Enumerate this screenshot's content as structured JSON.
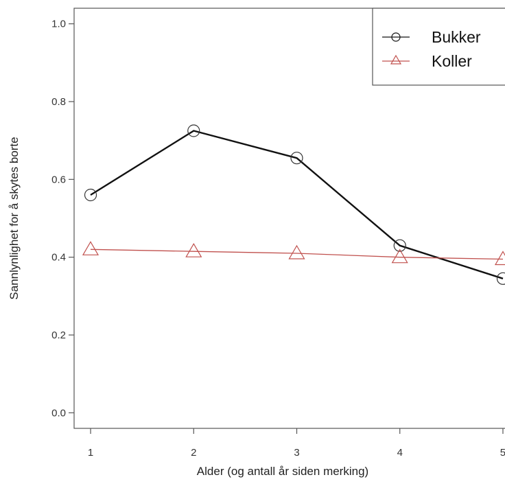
{
  "chart_data": {
    "type": "line",
    "xlabel": "Alder (og antall år siden merking)",
    "ylabel": "Sannlynlighet for å skytes borte",
    "x": [
      1,
      2,
      3,
      4,
      5
    ],
    "x_ticks": [
      "1",
      "2",
      "3",
      "4",
      "5"
    ],
    "y_ticks": [
      "0.0",
      "0.2",
      "0.4",
      "0.6",
      "0.8",
      "1.0"
    ],
    "xlim": [
      0.84,
      5.1
    ],
    "ylim": [
      -0.04,
      1.04
    ],
    "grid": false,
    "legend_position": "top-right",
    "series": [
      {
        "name": "Bukker",
        "marker": "circle",
        "color": "#111111",
        "values": [
          0.56,
          0.725,
          0.655,
          0.43,
          0.345
        ]
      },
      {
        "name": "Koller",
        "marker": "triangle",
        "color": "#c0504d",
        "values": [
          0.42,
          0.415,
          0.41,
          0.4,
          0.395
        ]
      }
    ]
  }
}
